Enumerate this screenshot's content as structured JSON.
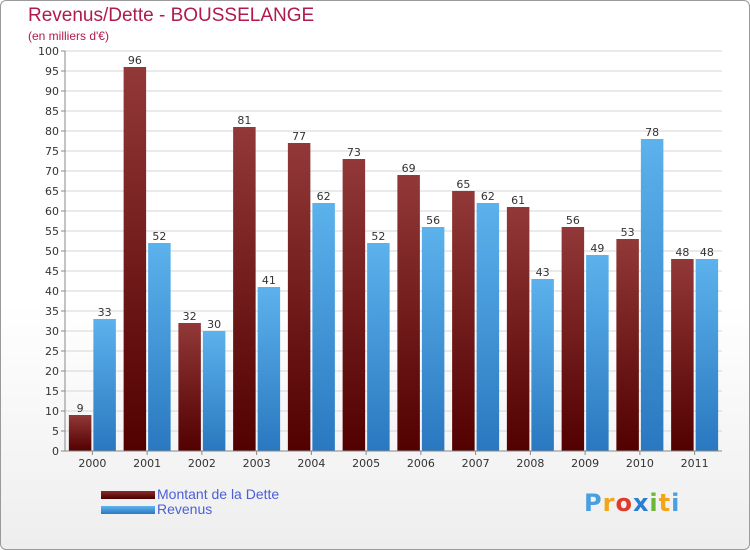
{
  "chart_data": {
    "type": "bar",
    "title": "Revenus/Dette - BOUSSELANGE",
    "subtitle": "(en milliers d'€)",
    "xlabel": "",
    "ylabel": "",
    "ylim": [
      0,
      100
    ],
    "ytick_step": 5,
    "grid": true,
    "categories": [
      "2000",
      "2001",
      "2002",
      "2003",
      "2004",
      "2005",
      "2006",
      "2007",
      "2008",
      "2009",
      "2010",
      "2011"
    ],
    "series": [
      {
        "name": "Montant de la Dette",
        "color": "#7a1010",
        "values": [
          9,
          96,
          32,
          81,
          77,
          73,
          69,
          65,
          61,
          56,
          53,
          48
        ]
      },
      {
        "name": "Revenus",
        "color": "#4a9fe0",
        "values": [
          33,
          52,
          30,
          41,
          62,
          52,
          56,
          62,
          43,
          49,
          78,
          48
        ]
      }
    ],
    "legend_position": "bottom-left"
  },
  "branding": {
    "letters": [
      "P",
      "r",
      "o",
      "x",
      "i",
      "t",
      "i"
    ],
    "colors": [
      "#4a9fe0",
      "#f2a516",
      "#e03a2a",
      "#2a7fd0",
      "#6ab83a",
      "#f2a516",
      "#4a9fe0"
    ]
  }
}
